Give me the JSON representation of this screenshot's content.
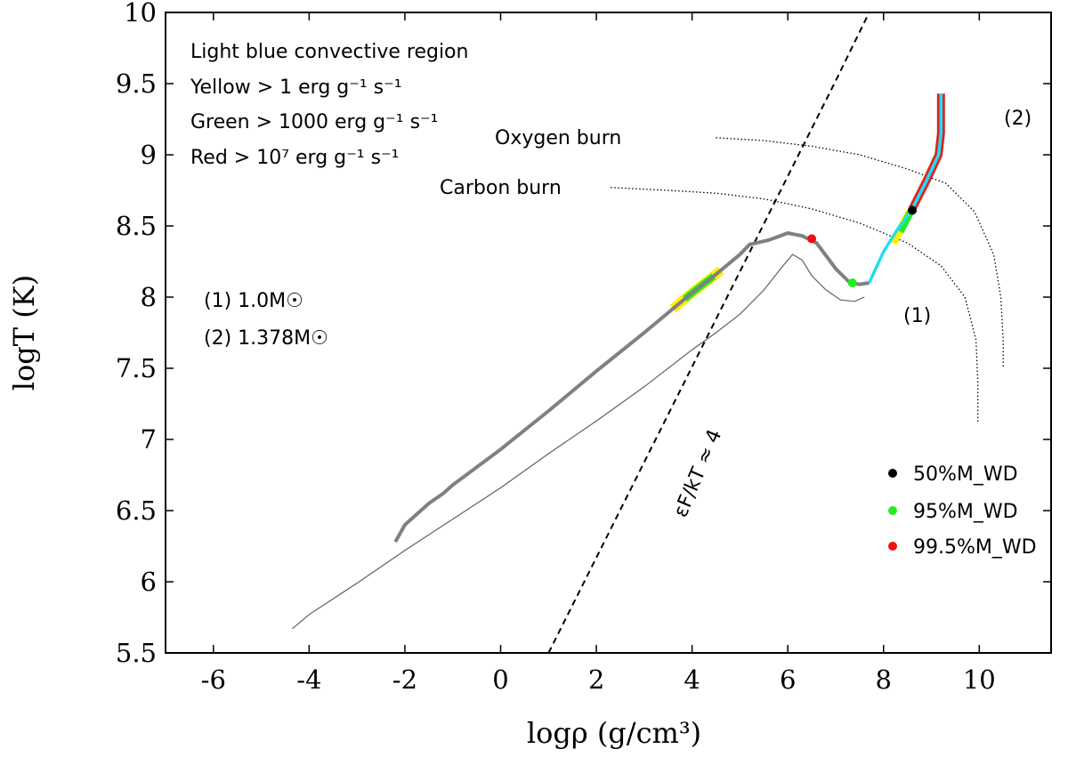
{
  "chart_data": {
    "type": "line",
    "xlabel": "logρ (g/cm³)",
    "ylabel": "logT (K)",
    "xlim": [
      -7,
      11.5
    ],
    "ylim": [
      5.5,
      10
    ],
    "xticks": [
      "-6",
      "-4",
      "-2",
      "0",
      "2",
      "4",
      "6",
      "8",
      "10"
    ],
    "yticks": [
      "5.5",
      "6",
      "6.5",
      "7",
      "7.5",
      "8",
      "8.5",
      "9",
      "9.5",
      "10"
    ],
    "grid": false,
    "info_lines": [
      "Light blue convective region",
      "Yellow > 1 erg g⁻¹ s⁻¹",
      "Green > 1000 erg g⁻¹ s⁻¹",
      "Red > 10⁷ erg g⁻¹ s⁻¹"
    ],
    "model_labels": [
      "(1) 1.0M☉",
      "(2) 1.378M☉"
    ],
    "curve_labels": {
      "oxygen": "Oxygen burn",
      "carbon": "Carbon burn",
      "degeneracy": "εF/kT ≈ 4",
      "track1": "(1)",
      "track2": "(2)"
    },
    "legend_placement": "bottom-right",
    "legend": [
      {
        "label": "50%M_WD",
        "color": "#000000"
      },
      {
        "label": "95%M_WD",
        "color": "#22ee22"
      },
      {
        "label": "99.5%M_WD",
        "color": "#ee1111"
      }
    ],
    "colors": {
      "thick_track": "#808080",
      "thin_track": "#606060",
      "convective": "#22ddee",
      "yellow": "#ffee00",
      "green": "#22ee22",
      "red": "#dd2222"
    },
    "series": [
      {
        "kind": "thin_track",
        "points": [
          [
            -4.35,
            5.67
          ],
          [
            -4.0,
            5.77
          ],
          [
            -3.0,
            5.99
          ],
          [
            -2.0,
            6.22
          ],
          [
            -1.0,
            6.44
          ],
          [
            0,
            6.66
          ],
          [
            1.0,
            6.9
          ],
          [
            2.0,
            7.13
          ],
          [
            3.0,
            7.37
          ],
          [
            4.0,
            7.63
          ],
          [
            4.5,
            7.75
          ],
          [
            5.0,
            7.88
          ],
          [
            5.5,
            8.05
          ],
          [
            5.9,
            8.22
          ],
          [
            6.1,
            8.3
          ],
          [
            6.3,
            8.26
          ],
          [
            6.5,
            8.15
          ],
          [
            6.8,
            8.05
          ],
          [
            7.1,
            7.98
          ],
          [
            7.4,
            7.97
          ],
          [
            7.6,
            8.0
          ]
        ]
      },
      {
        "kind": "thick_track",
        "points": [
          [
            -2.2,
            6.28
          ],
          [
            -2.0,
            6.4
          ],
          [
            -1.5,
            6.55
          ],
          [
            -1.2,
            6.62
          ],
          [
            -1.0,
            6.68
          ],
          [
            0,
            6.93
          ],
          [
            1.0,
            7.2
          ],
          [
            2.0,
            7.48
          ],
          [
            3.0,
            7.75
          ],
          [
            4.0,
            8.03
          ],
          [
            4.5,
            8.16
          ],
          [
            5.0,
            8.3
          ],
          [
            5.2,
            8.37
          ],
          [
            5.6,
            8.4
          ],
          [
            6.0,
            8.45
          ],
          [
            6.3,
            8.43
          ],
          [
            6.6,
            8.38
          ],
          [
            7.0,
            8.2
          ],
          [
            7.3,
            8.1
          ],
          [
            7.5,
            8.09
          ],
          [
            7.7,
            8.1
          ]
        ]
      },
      {
        "kind": "track2",
        "points": [
          [
            7.7,
            8.1
          ],
          [
            8.0,
            8.32
          ],
          [
            8.3,
            8.48
          ],
          [
            8.6,
            8.62
          ],
          [
            8.9,
            8.82
          ],
          [
            9.15,
            9.0
          ],
          [
            9.2,
            9.15
          ],
          [
            9.2,
            9.43
          ]
        ]
      },
      {
        "kind": "oxygen_burn",
        "points": [
          [
            4.5,
            9.12
          ],
          [
            5.5,
            9.1
          ],
          [
            6.5,
            9.06
          ],
          [
            7.5,
            9.0
          ],
          [
            8.5,
            8.9
          ],
          [
            9.3,
            8.8
          ],
          [
            9.9,
            8.6
          ],
          [
            10.3,
            8.3
          ],
          [
            10.45,
            8.0
          ],
          [
            10.5,
            7.7
          ],
          [
            10.5,
            7.5
          ]
        ]
      },
      {
        "kind": "carbon_burn",
        "points": [
          [
            2.3,
            8.77
          ],
          [
            3.5,
            8.75
          ],
          [
            4.5,
            8.73
          ],
          [
            5.5,
            8.69
          ],
          [
            6.5,
            8.62
          ],
          [
            7.5,
            8.52
          ],
          [
            8.5,
            8.38
          ],
          [
            9.2,
            8.22
          ],
          [
            9.7,
            8.0
          ],
          [
            9.93,
            7.7
          ],
          [
            9.97,
            7.4
          ],
          [
            9.97,
            7.12
          ]
        ]
      },
      {
        "kind": "degeneracy",
        "points": [
          [
            1.0,
            5.5
          ],
          [
            2.0,
            6.17
          ],
          [
            3.0,
            6.84
          ],
          [
            4.0,
            7.51
          ],
          [
            5.0,
            8.18
          ],
          [
            6.0,
            8.85
          ],
          [
            7.0,
            9.52
          ],
          [
            7.7,
            10.0
          ]
        ]
      }
    ],
    "burning_markers": [
      {
        "x": 8.6,
        "y": 8.61,
        "color": "#000000"
      },
      {
        "x": 7.35,
        "y": 8.1,
        "color": "#22ee22"
      },
      {
        "x": 6.5,
        "y": 8.41,
        "color": "#ee1111"
      }
    ]
  }
}
